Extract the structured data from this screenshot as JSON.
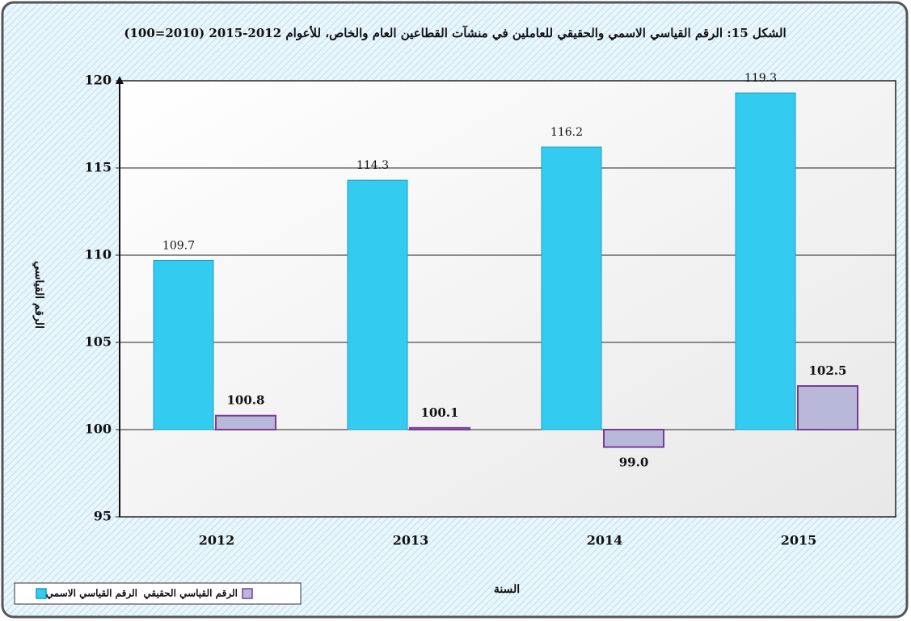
{
  "chart_data": {
    "type": "bar",
    "title": "الشكل 15: الرقم القياسي الاسمي والحقيقي للعاملين في منشآت القطاعين العام والخاص، للأعوام 2012-2015 (2010=100)",
    "y_label": "الرقم القياسي",
    "x_label": "السنة",
    "categories": [
      "2012",
      "2013",
      "2014",
      "2015"
    ],
    "series": [
      {
        "name": "الرقم القياسي الاسمي",
        "color": "#33ccf0",
        "values": [
          109.7,
          114.3,
          116.2,
          119.3
        ]
      },
      {
        "name": "الرقم القياسي الحقيقي",
        "color": "#b8b8d8",
        "values": [
          100.8,
          100.1,
          99.0,
          102.5
        ],
        "value_labels": [
          "100.8",
          "100.1",
          "99.0",
          "102.5"
        ]
      }
    ],
    "bar_base": 100,
    "ylim": [
      95,
      120
    ],
    "yticks": [
      95,
      100,
      105,
      110,
      115,
      120
    ],
    "grid": true
  }
}
